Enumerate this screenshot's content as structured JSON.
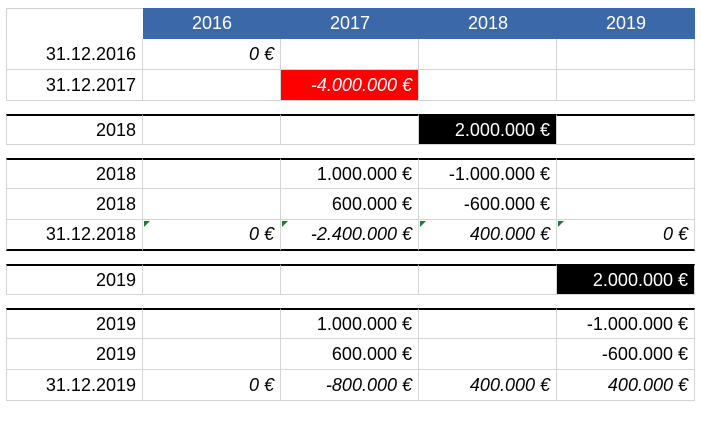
{
  "header": {
    "years": [
      "2016",
      "2017",
      "2018",
      "2019"
    ]
  },
  "blocks": [
    {
      "rows": [
        {
          "label": "31.12.2016",
          "cells": [
            "0 €",
            "",
            "",
            ""
          ],
          "italic": [
            true,
            false,
            false,
            false
          ],
          "highlight": [
            null,
            null,
            null,
            null
          ]
        },
        {
          "label": "31.12.2017",
          "cells": [
            "",
            "-4.000.000 €",
            "",
            ""
          ],
          "italic": [
            false,
            true,
            false,
            false
          ],
          "highlight": [
            null,
            "red",
            null,
            null
          ]
        }
      ]
    },
    {
      "rows": [
        {
          "label": "2018",
          "cells": [
            "",
            "",
            "2.000.000 €",
            ""
          ],
          "italic": [
            false,
            false,
            false,
            false
          ],
          "highlight": [
            null,
            null,
            "black",
            null
          ]
        }
      ]
    },
    {
      "rows": [
        {
          "label": "2018",
          "cells": [
            "",
            "1.000.000 €",
            "-1.000.000 €",
            ""
          ],
          "italic": [
            false,
            false,
            false,
            false
          ],
          "highlight": [
            null,
            null,
            null,
            null
          ]
        },
        {
          "label": "2018",
          "cells": [
            "",
            "600.000 €",
            "-600.000 €",
            ""
          ],
          "italic": [
            false,
            false,
            false,
            false
          ],
          "highlight": [
            null,
            null,
            null,
            null
          ]
        },
        {
          "label": "31.12.2018",
          "cells": [
            "0 €",
            "-2.400.000 €",
            "400.000 €",
            "0 €"
          ],
          "italic": [
            true,
            true,
            true,
            true
          ],
          "highlight": [
            null,
            null,
            null,
            null
          ],
          "marker": true
        }
      ]
    },
    {
      "rows": [
        {
          "label": "2019",
          "cells": [
            "",
            "",
            "",
            "2.000.000 €"
          ],
          "italic": [
            false,
            false,
            false,
            false
          ],
          "highlight": [
            null,
            null,
            null,
            "black"
          ]
        }
      ]
    },
    {
      "rows": [
        {
          "label": "2019",
          "cells": [
            "",
            "1.000.000 €",
            "",
            "-1.000.000 €"
          ],
          "italic": [
            false,
            false,
            false,
            false
          ],
          "highlight": [
            null,
            null,
            null,
            null
          ]
        },
        {
          "label": "2019",
          "cells": [
            "",
            "600.000 €",
            "",
            "-600.000 €"
          ],
          "italic": [
            false,
            false,
            false,
            false
          ],
          "highlight": [
            null,
            null,
            null,
            null
          ]
        },
        {
          "label": "31.12.2019",
          "cells": [
            "0 €",
            "-800.000 €",
            "400.000 €",
            "400.000 €"
          ],
          "italic": [
            true,
            true,
            true,
            true
          ],
          "highlight": [
            null,
            null,
            null,
            null
          ]
        }
      ]
    }
  ],
  "colors": {
    "header_bg": "#3b68a8",
    "red_highlight": "#ff0000",
    "black_highlight": "#000000",
    "marker": "#1e7b34"
  }
}
